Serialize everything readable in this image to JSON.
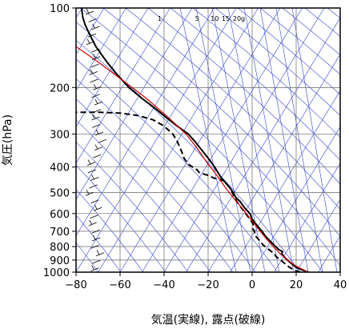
{
  "chart_data": {
    "type": "line",
    "title": "",
    "xlabel": "気温(実線), 露点(破線)",
    "ylabel": "気圧(hPa)",
    "xlim": [
      -80,
      40
    ],
    "ylim": [
      1000,
      100
    ],
    "y_scale": "log",
    "x_ticks": [
      -80,
      -60,
      -40,
      -20,
      0,
      20,
      40
    ],
    "x_tick_labels": [
      "−80",
      "−60",
      "−40",
      "−20",
      "0",
      "20",
      "40"
    ],
    "y_ticks": [
      100,
      200,
      300,
      400,
      500,
      600,
      700,
      800,
      900,
      1000
    ],
    "y_tick_labels": [
      "100",
      "200",
      "300",
      "400",
      "500",
      "600",
      "700",
      "800",
      "900",
      "1000"
    ],
    "mixing_ratio_labels": [
      "1",
      "5",
      "10",
      "15",
      "20g"
    ],
    "mixing_ratio_label_positions": [
      -42,
      -25,
      -17,
      -12,
      -6
    ],
    "colors": {
      "temperature": "#000000",
      "dewpoint": "#000000",
      "parcel": "#cc0000",
      "background_lines": "#3344cc",
      "wind_barbs": "#000000"
    },
    "series": [
      {
        "name": "",
        "line_style": "solid",
        "color": "#000000",
        "points": [
          [
            25.5,
            1000
          ],
          [
            24,
            990
          ],
          [
            20,
            960
          ],
          [
            18,
            930
          ],
          [
            16,
            900
          ],
          [
            14.5,
            875
          ],
          [
            13.5,
            850
          ],
          [
            13.8,
            835
          ],
          [
            12,
            820
          ],
          [
            10,
            790
          ],
          [
            8,
            760
          ],
          [
            6,
            730
          ],
          [
            4.5,
            700
          ],
          [
            2.5,
            670
          ],
          [
            0,
            630
          ],
          [
            -1,
            600
          ],
          [
            -3.5,
            570
          ],
          [
            -5.5,
            540
          ],
          [
            -7.5,
            520
          ],
          [
            -8.5,
            500
          ],
          [
            -11,
            470
          ],
          [
            -14,
            440
          ],
          [
            -15.5,
            420
          ],
          [
            -17,
            400
          ],
          [
            -20,
            370
          ],
          [
            -23.5,
            340
          ],
          [
            -26,
            320
          ],
          [
            -29,
            300
          ],
          [
            -34,
            280
          ],
          [
            -39,
            260
          ],
          [
            -44,
            240
          ],
          [
            -50,
            220
          ],
          [
            -56,
            200
          ],
          [
            -61,
            180
          ],
          [
            -66,
            160
          ],
          [
            -71,
            140
          ],
          [
            -74,
            125
          ],
          [
            -76,
            115
          ],
          [
            -77,
            108
          ],
          [
            -77.5,
            100
          ]
        ]
      },
      {
        "name": "",
        "line_style": "dashed",
        "color": "#000000",
        "points": [
          [
            22,
            1000
          ],
          [
            20,
            990
          ],
          [
            17,
            960
          ],
          [
            15,
            930
          ],
          [
            13,
            900
          ],
          [
            11,
            875
          ],
          [
            10,
            850
          ],
          [
            7.5,
            820
          ],
          [
            5,
            790
          ],
          [
            3.5,
            760
          ],
          [
            1.5,
            730
          ],
          [
            1,
            700
          ],
          [
            0,
            680
          ],
          [
            0.5,
            660
          ],
          [
            -1,
            630
          ],
          [
            -3,
            600
          ],
          [
            -5,
            570
          ],
          [
            -7,
            540
          ],
          [
            -8.5,
            510
          ],
          [
            -10,
            480
          ],
          [
            -13,
            450
          ],
          [
            -17.5,
            440
          ],
          [
            -20,
            430
          ],
          [
            -22,
            425
          ],
          [
            -24,
            420
          ],
          [
            -25,
            410
          ],
          [
            -27,
            400
          ],
          [
            -29,
            390
          ],
          [
            -30,
            380
          ],
          [
            -31,
            370
          ],
          [
            -32,
            350
          ],
          [
            -34,
            320
          ],
          [
            -36,
            300
          ],
          [
            -40,
            280
          ],
          [
            -45,
            265
          ],
          [
            -52,
            255
          ],
          [
            -60,
            250
          ],
          [
            -70,
            248
          ],
          [
            -80,
            248
          ]
        ]
      },
      {
        "name": "",
        "line_style": "solid",
        "color": "#cc0000",
        "points": [
          [
            25.5,
            1000
          ],
          [
            20,
            950
          ],
          [
            16,
            900
          ],
          [
            12,
            840
          ],
          [
            9,
            790
          ],
          [
            6,
            740
          ],
          [
            3,
            690
          ],
          [
            0,
            640
          ],
          [
            -4,
            580
          ],
          [
            -8,
            530
          ],
          [
            -12,
            480
          ],
          [
            -16,
            430
          ],
          [
            -20,
            390
          ],
          [
            -25,
            340
          ],
          [
            -30,
            300
          ],
          [
            -38,
            260
          ],
          [
            -48,
            220
          ],
          [
            -58,
            190
          ],
          [
            -70,
            160
          ],
          [
            -80,
            140
          ]
        ]
      }
    ],
    "grid": true,
    "legend": "none"
  }
}
